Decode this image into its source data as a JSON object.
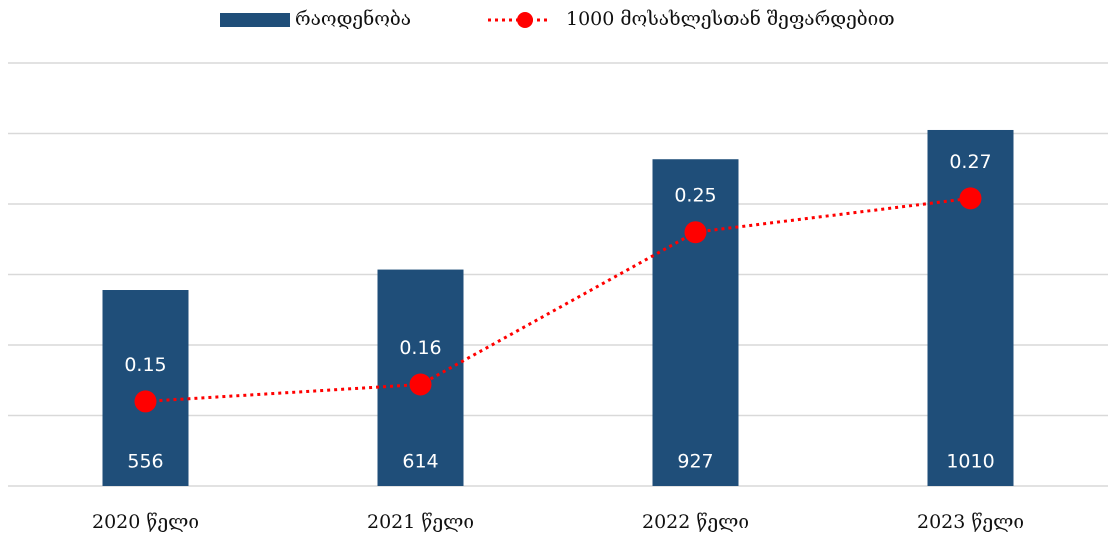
{
  "chart_data": {
    "type": "bar",
    "categories": [
      "2020 წელი",
      "2021 წელი",
      "2022 წელი",
      "2023 წელი"
    ],
    "series": [
      {
        "name": "რაოდენობა",
        "type": "bar",
        "color": "#1f4e79",
        "values": [
          556,
          614,
          927,
          1010
        ]
      },
      {
        "name": "1000 მოსახლესთან შეფარდებით",
        "type": "line",
        "axis": "y2",
        "color": "#ff0000",
        "values": [
          0.15,
          0.16,
          0.25,
          0.27
        ]
      }
    ],
    "ylim": [
      0,
      1200
    ],
    "yticks": [
      0,
      200,
      400,
      600,
      800,
      1000,
      1200
    ],
    "y2lim": [
      0.1,
      0.35
    ],
    "grid": true,
    "legend": "top"
  }
}
